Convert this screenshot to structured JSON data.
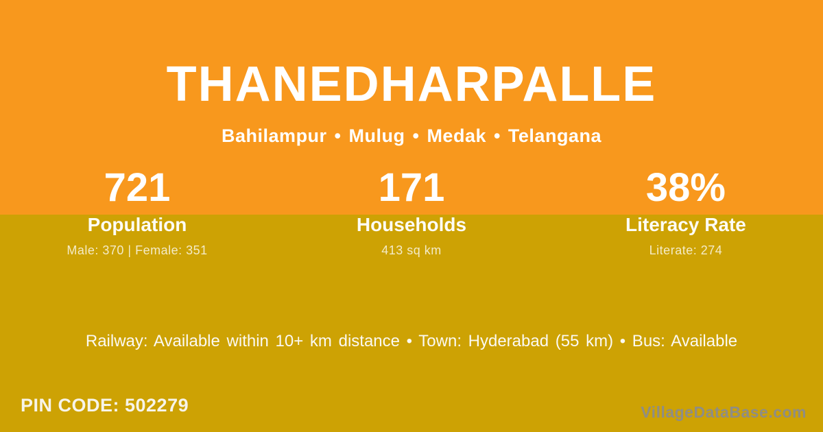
{
  "theme": {
    "orange": "#F8981D",
    "gold": "#CDA204",
    "white": "#FFFFFF",
    "muted_white": "rgba(255,255,255,0.78)",
    "watermark_gray": "#8F8D84"
  },
  "header": {
    "title": "THANEDHARPALLE",
    "breadcrumb": "Bahilampur • Mulug • Medak • Telangana"
  },
  "stats": [
    {
      "value": "721",
      "label": "Population",
      "detail": "Male: 370 | Female: 351"
    },
    {
      "value": "171",
      "label": "Households",
      "detail": "413 sq km"
    },
    {
      "value": "38%",
      "label": "Literacy Rate",
      "detail": "Literate: 274"
    }
  ],
  "info_line": "Railway: Available within 10+ km distance  •  Town: Hyderabad (55 km)  •  Bus: Available",
  "footer": {
    "pin_code": "PIN CODE: 502279",
    "watermark": "VillageDataBase.com"
  }
}
